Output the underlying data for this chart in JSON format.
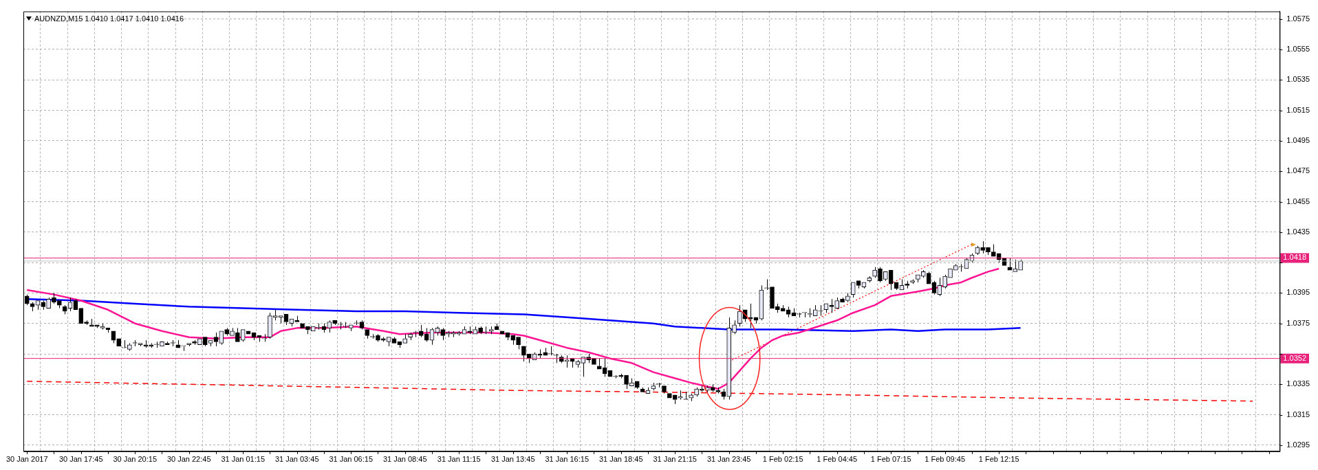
{
  "chart_data": {
    "type": "candlestick",
    "title": "AUDNZD,M15 1.0410 1.0417 1.0410 1.0416",
    "grid": true,
    "x": [
      "2017-01-30T15:15",
      "2017-01-30T15:30",
      "2017-01-30T15:45",
      "2017-01-30T16:00",
      "2017-01-30T16:15",
      "2017-01-30T16:30",
      "2017-01-30T16:45",
      "2017-01-30T17:00",
      "2017-01-30T17:15",
      "2017-01-30T17:30",
      "2017-01-30T17:45",
      "2017-01-30T18:00",
      "2017-01-30T18:15",
      "2017-01-30T18:30",
      "2017-01-30T18:45",
      "2017-01-30T19:00",
      "2017-01-30T19:15",
      "2017-01-30T19:30",
      "2017-01-30T19:45",
      "2017-01-30T20:00",
      "2017-01-30T20:15",
      "2017-01-30T20:30",
      "2017-01-30T20:45",
      "2017-01-30T21:00",
      "2017-01-30T21:15",
      "2017-01-30T21:30",
      "2017-01-30T21:45",
      "2017-01-30T22:00",
      "2017-01-30T22:15",
      "2017-01-30T22:30",
      "2017-01-30T22:45",
      "2017-01-30T23:00",
      "2017-01-30T23:15",
      "2017-01-30T23:30",
      "2017-01-30T23:45",
      "2017-01-31T00:00",
      "2017-01-31T00:15",
      "2017-01-31T00:30",
      "2017-01-31T00:45",
      "2017-01-31T01:00",
      "2017-01-31T01:15",
      "2017-01-31T01:30",
      "2017-01-31T01:45",
      "2017-01-31T02:00",
      "2017-01-31T02:15",
      "2017-01-31T02:30",
      "2017-01-31T02:45",
      "2017-01-31T03:00",
      "2017-01-31T03:15",
      "2017-01-31T03:30",
      "2017-01-31T03:45",
      "2017-01-31T04:00",
      "2017-01-31T04:15",
      "2017-01-31T04:30",
      "2017-01-31T04:45",
      "2017-01-31T05:00",
      "2017-01-31T05:15",
      "2017-01-31T05:30",
      "2017-01-31T05:45",
      "2017-01-31T06:00",
      "2017-01-31T06:15",
      "2017-01-31T06:30",
      "2017-01-31T06:45",
      "2017-01-31T07:00",
      "2017-01-31T07:15",
      "2017-01-31T07:30",
      "2017-01-31T07:45",
      "2017-01-31T08:00",
      "2017-01-31T08:15",
      "2017-01-31T08:30",
      "2017-01-31T08:45",
      "2017-01-31T09:00",
      "2017-01-31T09:15",
      "2017-01-31T09:30",
      "2017-01-31T09:45",
      "2017-01-31T10:00",
      "2017-01-31T10:15",
      "2017-01-31T10:30",
      "2017-01-31T10:45",
      "2017-01-31T11:00",
      "2017-01-31T11:15",
      "2017-01-31T11:30",
      "2017-01-31T11:45",
      "2017-01-31T12:00",
      "2017-01-31T12:15",
      "2017-01-31T12:30",
      "2017-01-31T12:45",
      "2017-01-31T13:00",
      "2017-01-31T13:15",
      "2017-01-31T13:30",
      "2017-01-31T13:45",
      "2017-01-31T14:00",
      "2017-01-31T14:15",
      "2017-01-31T14:30",
      "2017-01-31T14:45",
      "2017-01-31T15:00",
      "2017-01-31T15:15",
      "2017-01-31T15:30",
      "2017-01-31T15:45",
      "2017-01-31T16:00",
      "2017-01-31T16:15",
      "2017-01-31T16:30",
      "2017-01-31T16:45",
      "2017-01-31T17:00",
      "2017-01-31T17:15",
      "2017-01-31T17:30",
      "2017-01-31T17:45",
      "2017-01-31T18:00",
      "2017-01-31T18:15",
      "2017-01-31T18:30",
      "2017-01-31T18:45",
      "2017-01-31T19:00",
      "2017-01-31T19:15",
      "2017-01-31T19:30",
      "2017-01-31T19:45",
      "2017-01-31T20:00",
      "2017-01-31T20:15",
      "2017-01-31T20:30",
      "2017-01-31T20:45",
      "2017-01-31T21:00",
      "2017-01-31T21:15",
      "2017-01-31T21:30",
      "2017-01-31T21:45",
      "2017-01-31T22:00",
      "2017-01-31T22:15",
      "2017-01-31T22:30",
      "2017-01-31T22:45",
      "2017-01-31T23:00",
      "2017-01-31T23:15",
      "2017-01-31T23:30",
      "2017-01-31T23:45",
      "2017-02-01T00:00",
      "2017-02-01T00:15",
      "2017-02-01T00:30",
      "2017-02-01T00:45",
      "2017-02-01T01:00",
      "2017-02-01T01:15",
      "2017-02-01T01:30",
      "2017-02-01T01:45",
      "2017-02-01T02:00",
      "2017-02-01T02:15",
      "2017-02-01T02:30",
      "2017-02-01T02:45",
      "2017-02-01T03:00",
      "2017-02-01T03:15",
      "2017-02-01T03:30",
      "2017-02-01T03:45",
      "2017-02-01T04:00",
      "2017-02-01T04:15",
      "2017-02-01T04:30",
      "2017-02-01T04:45",
      "2017-02-01T05:00",
      "2017-02-01T05:15",
      "2017-02-01T05:30",
      "2017-02-01T05:45",
      "2017-02-01T06:00",
      "2017-02-01T06:15",
      "2017-02-01T06:30",
      "2017-02-01T06:45",
      "2017-02-01T07:00",
      "2017-02-01T07:15",
      "2017-02-01T07:30",
      "2017-02-01T07:45",
      "2017-02-01T08:00",
      "2017-02-01T08:15",
      "2017-02-01T08:30",
      "2017-02-01T08:45",
      "2017-02-01T09:00",
      "2017-02-01T09:15",
      "2017-02-01T09:30",
      "2017-02-01T09:45",
      "2017-02-01T10:00",
      "2017-02-01T10:15",
      "2017-02-01T10:30",
      "2017-02-01T10:45",
      "2017-02-01T11:00",
      "2017-02-01T11:15",
      "2017-02-01T11:30",
      "2017-02-01T11:45",
      "2017-02-01T12:00",
      "2017-02-01T12:15",
      "2017-02-01T12:30",
      "2017-02-01T12:45",
      "2017-02-01T13:00",
      "2017-02-01T13:15"
    ],
    "ohlc": [
      [
        1.0393,
        1.0394,
        1.0387,
        1.0388
      ],
      [
        1.0388,
        1.0389,
        1.0383,
        1.0386
      ],
      [
        1.0387,
        1.039,
        1.0384,
        1.039
      ],
      [
        1.0389,
        1.039,
        1.0384,
        1.0386
      ],
      [
        1.0385,
        1.0392,
        1.0385,
        1.0391
      ],
      [
        1.0392,
        1.0395,
        1.0388,
        1.0389
      ],
      [
        1.039,
        1.039,
        1.0385,
        1.0387
      ],
      [
        1.0386,
        1.0387,
        1.0381,
        1.0383
      ],
      [
        1.0385,
        1.0392,
        1.0383,
        1.0389
      ],
      [
        1.039,
        1.0391,
        1.0384,
        1.0384
      ],
      [
        1.0385,
        1.0385,
        1.0375,
        1.0375
      ],
      [
        1.0376,
        1.0377,
        1.0374,
        1.0375
      ],
      [
        1.0374,
        1.0378,
        1.0373,
        1.0373
      ],
      [
        1.0374,
        1.0374,
        1.0372,
        1.0373
      ],
      [
        1.0372,
        1.0375,
        1.0371,
        1.0373
      ],
      [
        1.0372,
        1.0372,
        1.0369,
        1.0371
      ],
      [
        1.037,
        1.037,
        1.0362,
        1.0364
      ],
      [
        1.0365,
        1.0365,
        1.036,
        1.036
      ],
      [
        1.0359,
        1.0364,
        1.0359,
        1.0359
      ],
      [
        1.0358,
        1.0362,
        1.0357,
        1.0361
      ],
      [
        1.0362,
        1.0364,
        1.036,
        1.0362
      ],
      [
        1.0361,
        1.0362,
        1.036,
        1.0362
      ],
      [
        1.0361,
        1.0364,
        1.0359,
        1.036
      ],
      [
        1.0361,
        1.0362,
        1.0359,
        1.036
      ],
      [
        1.0361,
        1.0363,
        1.0359,
        1.0361
      ],
      [
        1.036,
        1.0363,
        1.036,
        1.0363
      ],
      [
        1.0362,
        1.0363,
        1.0361,
        1.0361
      ],
      [
        1.0362,
        1.0364,
        1.036,
        1.0362
      ],
      [
        1.0361,
        1.0364,
        1.0359,
        1.0359
      ],
      [
        1.036,
        1.036,
        1.0357,
        1.036
      ],
      [
        1.0361,
        1.0362,
        1.036,
        1.0362
      ],
      [
        1.0363,
        1.0364,
        1.0361,
        1.0362
      ],
      [
        1.0361,
        1.0365,
        1.0361,
        1.0365
      ],
      [
        1.0366,
        1.0366,
        1.036,
        1.0361
      ],
      [
        1.0362,
        1.0364,
        1.036,
        1.0364
      ],
      [
        1.0366,
        1.0369,
        1.036,
        1.0363
      ],
      [
        1.0362,
        1.037,
        1.0361,
        1.037
      ],
      [
        1.0371,
        1.0372,
        1.0367,
        1.0368
      ],
      [
        1.0367,
        1.0372,
        1.0367,
        1.037
      ],
      [
        1.0369,
        1.0372,
        1.0363,
        1.0363
      ],
      [
        1.0364,
        1.0371,
        1.0363,
        1.0371
      ],
      [
        1.037,
        1.037,
        1.0368,
        1.0368
      ],
      [
        1.0369,
        1.0369,
        1.0364,
        1.0366
      ],
      [
        1.0367,
        1.0367,
        1.0363,
        1.0366
      ],
      [
        1.0365,
        1.0368,
        1.0363,
        1.0365
      ],
      [
        1.0366,
        1.0382,
        1.0365,
        1.038
      ],
      [
        1.0379,
        1.0384,
        1.0377,
        1.038
      ],
      [
        1.0379,
        1.038,
        1.0375,
        1.038
      ],
      [
        1.0381,
        1.0381,
        1.0374,
        1.0376
      ],
      [
        1.0375,
        1.0378,
        1.0373,
        1.0378
      ],
      [
        1.0377,
        1.038,
        1.0376,
        1.0376
      ],
      [
        1.0375,
        1.0375,
        1.0372,
        1.0372
      ],
      [
        1.0373,
        1.0373,
        1.0368,
        1.0371
      ],
      [
        1.037,
        1.0373,
        1.037,
        1.0373
      ],
      [
        1.0372,
        1.0375,
        1.0371,
        1.0372
      ],
      [
        1.0373,
        1.0375,
        1.0369,
        1.0371
      ],
      [
        1.0372,
        1.0377,
        1.0369,
        1.0376
      ],
      [
        1.0377,
        1.0377,
        1.0374,
        1.0375
      ],
      [
        1.0374,
        1.0376,
        1.0371,
        1.0374
      ],
      [
        1.0373,
        1.0376,
        1.0372,
        1.0373
      ],
      [
        1.0372,
        1.0374,
        1.037,
        1.0374
      ],
      [
        1.0375,
        1.0377,
        1.0374,
        1.0375
      ],
      [
        1.0376,
        1.0377,
        1.0371,
        1.0372
      ],
      [
        1.0371,
        1.0371,
        1.0365,
        1.0367
      ],
      [
        1.0366,
        1.0368,
        1.0365,
        1.0366
      ],
      [
        1.0367,
        1.0368,
        1.0363,
        1.0364
      ],
      [
        1.0365,
        1.0366,
        1.0363,
        1.0364
      ],
      [
        1.0363,
        1.0366,
        1.036,
        1.0366
      ],
      [
        1.0365,
        1.0366,
        1.0362,
        1.0362
      ],
      [
        1.0363,
        1.0363,
        1.0359,
        1.0361
      ],
      [
        1.0362,
        1.0368,
        1.0362,
        1.0365
      ],
      [
        1.0366,
        1.0369,
        1.0364,
        1.0368
      ],
      [
        1.0369,
        1.037,
        1.0366,
        1.0369
      ],
      [
        1.037,
        1.0374,
        1.0366,
        1.0367
      ],
      [
        1.0368,
        1.0372,
        1.0363,
        1.0364
      ],
      [
        1.0364,
        1.0372,
        1.0361,
        1.0371
      ],
      [
        1.0369,
        1.0373,
        1.0367,
        1.0372
      ],
      [
        1.0371,
        1.0372,
        1.0364,
        1.0367
      ],
      [
        1.0368,
        1.037,
        1.0366,
        1.0369
      ],
      [
        1.0368,
        1.037,
        1.0366,
        1.0369
      ],
      [
        1.0368,
        1.037,
        1.0367,
        1.0369
      ],
      [
        1.0368,
        1.0373,
        1.0368,
        1.0371
      ],
      [
        1.037,
        1.0373,
        1.0368,
        1.0369
      ],
      [
        1.0368,
        1.0373,
        1.0368,
        1.0371
      ],
      [
        1.0372,
        1.0373,
        1.0368,
        1.0369
      ],
      [
        1.0369,
        1.0373,
        1.0368,
        1.0369
      ],
      [
        1.037,
        1.0373,
        1.0368,
        1.0371
      ],
      [
        1.0373,
        1.0375,
        1.0371,
        1.0371
      ],
      [
        1.037,
        1.037,
        1.0368,
        1.0368
      ],
      [
        1.0369,
        1.0369,
        1.0364,
        1.0366
      ],
      [
        1.0367,
        1.0367,
        1.0361,
        1.0364
      ],
      [
        1.0366,
        1.0366,
        1.0358,
        1.0361
      ],
      [
        1.036,
        1.036,
        1.035,
        1.0354
      ],
      [
        1.0355,
        1.0355,
        1.0349,
        1.0352
      ],
      [
        1.0351,
        1.0356,
        1.0351,
        1.0355
      ],
      [
        1.0355,
        1.0358,
        1.0352,
        1.0354
      ],
      [
        1.0356,
        1.0359,
        1.0354,
        1.0354
      ],
      [
        1.0355,
        1.036,
        1.0354,
        1.0355
      ],
      [
        1.0354,
        1.0355,
        1.0349,
        1.0354
      ],
      [
        1.0353,
        1.0354,
        1.0349,
        1.035
      ],
      [
        1.035,
        1.0354,
        1.0346,
        1.0351
      ],
      [
        1.0352,
        1.0352,
        1.0346,
        1.035
      ],
      [
        1.0348,
        1.0351,
        1.0346,
        1.035
      ],
      [
        1.0349,
        1.0353,
        1.034,
        1.0353
      ],
      [
        1.0353,
        1.0355,
        1.0349,
        1.0351
      ],
      [
        1.0352,
        1.0352,
        1.0348,
        1.0348
      ],
      [
        1.0347,
        1.0352,
        1.0345,
        1.0345
      ],
      [
        1.0346,
        1.0352,
        1.034,
        1.0342
      ],
      [
        1.0344,
        1.0344,
        1.034,
        1.034
      ],
      [
        1.034,
        1.0341,
        1.0339,
        1.034
      ],
      [
        1.0341,
        1.0342,
        1.0339,
        1.034
      ],
      [
        1.0341,
        1.0341,
        1.0332,
        1.0335
      ],
      [
        1.0334,
        1.0339,
        1.0334,
        1.0336
      ],
      [
        1.0337,
        1.0337,
        1.0332,
        1.0333
      ],
      [
        1.0332,
        1.0333,
        1.033,
        1.033
      ],
      [
        1.0329,
        1.0333,
        1.0329,
        1.0331
      ],
      [
        1.0332,
        1.0336,
        1.0331,
        1.0334
      ],
      [
        1.0335,
        1.0336,
        1.0333,
        1.0335
      ],
      [
        1.0334,
        1.0334,
        1.0329,
        1.033
      ],
      [
        1.0329,
        1.0329,
        1.0326,
        1.0326
      ],
      [
        1.0328,
        1.0328,
        1.0322,
        1.0325
      ],
      [
        1.0326,
        1.0331,
        1.0325,
        1.0327
      ],
      [
        1.0325,
        1.033,
        1.0325,
        1.0325
      ],
      [
        1.0326,
        1.0329,
        1.0324,
        1.0328
      ],
      [
        1.0328,
        1.0333,
        1.0327,
        1.0332
      ],
      [
        1.0332,
        1.0334,
        1.033,
        1.0331
      ],
      [
        1.0331,
        1.0334,
        1.0329,
        1.0333
      ],
      [
        1.0333,
        1.0335,
        1.033,
        1.0331
      ],
      [
        1.0331,
        1.0333,
        1.0329,
        1.033
      ],
      [
        1.033,
        1.0332,
        1.0325,
        1.0327
      ],
      [
        1.0327,
        1.0379,
        1.0325,
        1.0372
      ],
      [
        1.0369,
        1.0377,
        1.0368,
        1.0374
      ],
      [
        1.0375,
        1.0387,
        1.0373,
        1.0383
      ],
      [
        1.0384,
        1.0384,
        1.0376,
        1.0378
      ],
      [
        1.0379,
        1.0388,
        1.0372,
        1.0378
      ],
      [
        1.0379,
        1.0379,
        1.0375,
        1.0377
      ],
      [
        1.0378,
        1.04,
        1.0377,
        1.0397
      ],
      [
        1.0398,
        1.0404,
        1.0397,
        1.0398
      ],
      [
        1.0399,
        1.0399,
        1.0385,
        1.0385
      ],
      [
        1.0386,
        1.0388,
        1.0382,
        1.0384
      ],
      [
        1.0385,
        1.0387,
        1.0383,
        1.0383
      ],
      [
        1.0384,
        1.0386,
        1.0379,
        1.0381
      ],
      [
        1.0382,
        1.0385,
        1.038,
        1.038
      ],
      [
        1.0381,
        1.0382,
        1.0379,
        1.0381
      ],
      [
        1.0382,
        1.0382,
        1.0379,
        1.0382
      ],
      [
        1.0381,
        1.0385,
        1.0379,
        1.0381
      ],
      [
        1.038,
        1.0387,
        1.038,
        1.0384
      ],
      [
        1.0383,
        1.0387,
        1.038,
        1.0383
      ],
      [
        1.0384,
        1.0388,
        1.0382,
        1.0388
      ],
      [
        1.0387,
        1.0391,
        1.0382,
        1.0386
      ],
      [
        1.0385,
        1.0392,
        1.0385,
        1.039
      ],
      [
        1.0391,
        1.0392,
        1.0389,
        1.0389
      ],
      [
        1.039,
        1.0395,
        1.0389,
        1.0393
      ],
      [
        1.0394,
        1.0402,
        1.0392,
        1.0402
      ],
      [
        1.0403,
        1.0403,
        1.0398,
        1.04
      ],
      [
        1.0399,
        1.0402,
        1.0398,
        1.0402
      ],
      [
        1.0403,
        1.0406,
        1.0402,
        1.0405
      ],
      [
        1.0406,
        1.0412,
        1.0405,
        1.041
      ],
      [
        1.0411,
        1.0412,
        1.0402,
        1.0403
      ],
      [
        1.0404,
        1.0409,
        1.0403,
        1.0409
      ],
      [
        1.041,
        1.041,
        1.0397,
        1.0401
      ],
      [
        1.0402,
        1.0402,
        1.0397,
        1.0398
      ],
      [
        1.0397,
        1.0404,
        1.0397,
        1.04
      ],
      [
        1.0401,
        1.0403,
        1.0398,
        1.04
      ],
      [
        1.0402,
        1.0404,
        1.0401,
        1.0403
      ],
      [
        1.0404,
        1.0407,
        1.0402,
        1.0407
      ],
      [
        1.0406,
        1.041,
        1.0405,
        1.0409
      ],
      [
        1.0408,
        1.0409,
        1.0401,
        1.0401
      ],
      [
        1.0402,
        1.0403,
        1.0394,
        1.0395
      ],
      [
        1.0394,
        1.0405,
        1.0393,
        1.04
      ],
      [
        1.0399,
        1.0407,
        1.0398,
        1.0406
      ],
      [
        1.0405,
        1.0411,
        1.0405,
        1.0411
      ],
      [
        1.041,
        1.0414,
        1.041,
        1.0413
      ],
      [
        1.0412,
        1.0414,
        1.0409,
        1.0412
      ],
      [
        1.0411,
        1.0418,
        1.0411,
        1.0417
      ],
      [
        1.0416,
        1.0421,
        1.0415,
        1.042
      ],
      [
        1.0421,
        1.0426,
        1.042,
        1.0425
      ],
      [
        1.0425,
        1.0429,
        1.0421,
        1.0423
      ],
      [
        1.0425,
        1.0425,
        1.042,
        1.0422
      ],
      [
        1.0422,
        1.0427,
        1.0419,
        1.0419
      ],
      [
        1.0421,
        1.0421,
        1.0415,
        1.0417
      ],
      [
        1.0418,
        1.0418,
        1.0413,
        1.0413
      ],
      [
        1.0412,
        1.0418,
        1.041,
        1.041
      ],
      [
        1.0409,
        1.0417,
        1.0409,
        1.0411
      ],
      [
        1.041,
        1.0417,
        1.041,
        1.0416
      ]
    ],
    "series": [
      {
        "type": "line",
        "color": "#ff1493",
        "x": [
          "2017-01-30T15:15",
          "2017-01-30T16:30",
          "2017-01-30T17:45",
          "2017-01-30T19:00",
          "2017-01-30T20:15",
          "2017-01-30T21:30",
          "2017-01-30T22:45",
          "2017-01-31T00:00",
          "2017-01-31T01:15",
          "2017-01-31T02:30",
          "2017-01-31T03:00",
          "2017-01-31T03:45",
          "2017-01-31T05:00",
          "2017-01-31T06:30",
          "2017-01-31T07:45",
          "2017-01-31T08:30",
          "2017-01-31T10:00",
          "2017-01-31T12:30",
          "2017-01-31T13:45",
          "2017-01-31T14:15",
          "2017-01-31T15:15",
          "2017-01-31T16:15",
          "2017-01-31T17:15",
          "2017-01-31T18:15",
          "2017-01-31T19:15",
          "2017-01-31T20:15",
          "2017-01-31T21:15",
          "2017-01-31T22:00",
          "2017-01-31T23:15",
          "2017-01-31T23:45",
          "2017-02-01T00:15",
          "2017-02-01T00:45",
          "2017-02-01T01:15",
          "2017-02-01T01:45",
          "2017-02-01T02:15",
          "2017-02-01T03:00",
          "2017-02-01T04:45",
          "2017-02-01T05:30",
          "2017-02-01T06:30",
          "2017-02-01T07:15",
          "2017-02-01T08:30",
          "2017-02-01T09:15",
          "2017-02-01T09:45",
          "2017-02-01T10:30",
          "2017-02-01T11:00",
          "2017-02-01T11:45",
          "2017-02-01T12:15"
        ],
        "values": [
          1.0397,
          1.0394,
          1.039,
          1.0384,
          1.0375,
          1.037,
          1.0366,
          1.0365,
          1.0366,
          1.0366,
          1.037,
          1.0372,
          1.0372,
          1.0373,
          1.037,
          1.0368,
          1.0369,
          1.0369,
          1.0368,
          1.0367,
          1.0363,
          1.0359,
          1.0356,
          1.0352,
          1.0349,
          1.0343,
          1.0339,
          1.0336,
          1.0332,
          1.0336,
          1.0344,
          1.0352,
          1.0359,
          1.0364,
          1.0367,
          1.0369,
          1.0377,
          1.0382,
          1.0387,
          1.0393,
          1.0396,
          1.0398,
          1.04,
          1.0402,
          1.0405,
          1.0409,
          1.0411
        ]
      },
      {
        "type": "line",
        "color": "#0000ff",
        "x": [
          "2017-01-30T15:15",
          "2017-01-30T17:45",
          "2017-01-30T20:15",
          "2017-01-30T22:45",
          "2017-01-31T01:15",
          "2017-01-31T03:45",
          "2017-01-31T06:30",
          "2017-01-31T08:45",
          "2017-01-31T11:15",
          "2017-01-31T14:15",
          "2017-01-31T16:15",
          "2017-01-31T17:15",
          "2017-01-31T18:15",
          "2017-01-31T19:15",
          "2017-01-31T20:15",
          "2017-01-31T21:15",
          "2017-01-31T23:45",
          "2017-02-01T02:15",
          "2017-02-01T05:30",
          "2017-02-01T07:15",
          "2017-02-01T08:30",
          "2017-02-01T09:45",
          "2017-02-01T11:45",
          "2017-02-01T13:15"
        ],
        "values": [
          1.0391,
          1.039,
          1.0388,
          1.0386,
          1.0385,
          1.0384,
          1.0383,
          1.0383,
          1.0382,
          1.0381,
          1.0379,
          1.0378,
          1.0377,
          1.0376,
          1.0375,
          1.0373,
          1.0371,
          1.0371,
          1.037,
          1.0371,
          1.037,
          1.0371,
          1.0371,
          1.0372
        ]
      },
      {
        "type": "line",
        "color": "#ff0000",
        "line_style": "dashed",
        "x": [
          "2017-01-30T15:15",
          "2017-01-31T06:30",
          "2017-01-31T13:45",
          "2017-01-31T20:00",
          "2017-02-01T05:30",
          "2017-02-01T13:15",
          "2017-02-02T00:00"
        ],
        "values": [
          1.0337,
          1.0333,
          1.0331,
          1.033,
          1.0328,
          1.0326,
          1.0324
        ]
      },
      {
        "type": "line",
        "color": "#ff0000",
        "line_style": "dotted",
        "x": [
          "2017-01-31T23:45",
          "2017-02-01T11:00"
        ],
        "values": [
          1.035,
          1.0427
        ]
      }
    ],
    "ref_lines": [
      {
        "axis": "y",
        "value": 1.0418,
        "label": "1.0418",
        "color": "#e8217a"
      },
      {
        "axis": "y",
        "value": 1.0352,
        "label": "1.0352",
        "color": "#e8217a"
      },
      {
        "axis": "y",
        "value": 1.0416,
        "color": "#c0c0c0"
      }
    ],
    "xlim": [
      "2017-01-30T15:05",
      "2017-02-02T01:15"
    ],
    "xticks": [
      {
        "value": "2017-01-30T15:15",
        "label": "30 Jan 2017"
      },
      {
        "value": "2017-01-30T16:30",
        "label": null
      },
      {
        "value": "2017-01-30T17:45",
        "label": "30 Jan 17:45"
      },
      {
        "value": "2017-01-30T19:00",
        "label": null
      },
      {
        "value": "2017-01-30T20:15",
        "label": "30 Jan 20:15"
      },
      {
        "value": "2017-01-30T21:30",
        "label": null
      },
      {
        "value": "2017-01-30T22:45",
        "label": "30 Jan 22:45"
      },
      {
        "value": "2017-01-31T00:00",
        "label": null
      },
      {
        "value": "2017-01-31T01:15",
        "label": "31 Jan 01:15"
      },
      {
        "value": "2017-01-31T02:30",
        "label": null
      },
      {
        "value": "2017-01-31T03:45",
        "label": "31 Jan 03:45"
      },
      {
        "value": "2017-01-31T05:00",
        "label": null
      },
      {
        "value": "2017-01-31T06:15",
        "label": "31 Jan 06:15"
      },
      {
        "value": "2017-01-31T07:30",
        "label": null
      },
      {
        "value": "2017-01-31T08:45",
        "label": "31 Jan 08:45"
      },
      {
        "value": "2017-01-31T10:00",
        "label": null
      },
      {
        "value": "2017-01-31T11:15",
        "label": "31 Jan 11:15"
      },
      {
        "value": "2017-01-31T12:30",
        "label": null
      },
      {
        "value": "2017-01-31T13:45",
        "label": "31 Jan 13:45"
      },
      {
        "value": "2017-01-31T15:00",
        "label": null
      },
      {
        "value": "2017-01-31T16:15",
        "label": "31 Jan 16:15"
      },
      {
        "value": "2017-01-31T17:30",
        "label": null
      },
      {
        "value": "2017-01-31T18:45",
        "label": "31 Jan 18:45"
      },
      {
        "value": "2017-01-31T20:00",
        "label": null
      },
      {
        "value": "2017-01-31T21:15",
        "label": "31 Jan 21:15"
      },
      {
        "value": "2017-01-31T22:30",
        "label": null
      },
      {
        "value": "2017-01-31T23:45",
        "label": "31 Jan 23:45"
      },
      {
        "value": "2017-02-01T01:00",
        "label": null
      },
      {
        "value": "2017-02-01T02:15",
        "label": "1 Feb 02:15"
      },
      {
        "value": "2017-02-01T03:30",
        "label": null
      },
      {
        "value": "2017-02-01T04:45",
        "label": "1 Feb 04:45"
      },
      {
        "value": "2017-02-01T06:00",
        "label": null
      },
      {
        "value": "2017-02-01T07:15",
        "label": "1 Feb 07:15"
      },
      {
        "value": "2017-02-01T08:30",
        "label": null
      },
      {
        "value": "2017-02-01T09:45",
        "label": "1 Feb 09:45"
      },
      {
        "value": "2017-02-01T11:00",
        "label": null
      },
      {
        "value": "2017-02-01T12:15",
        "label": "1 Feb 12:15"
      },
      {
        "value": "2017-02-01T13:30",
        "label": null
      },
      {
        "value": "2017-02-01T14:45",
        "label": null
      },
      {
        "value": "2017-02-01T16:00",
        "label": null
      },
      {
        "value": "2017-02-01T17:15",
        "label": null
      },
      {
        "value": "2017-02-01T18:30",
        "label": null
      },
      {
        "value": "2017-02-01T19:45",
        "label": null
      },
      {
        "value": "2017-02-01T21:00",
        "label": null
      },
      {
        "value": "2017-02-01T22:15",
        "label": null
      },
      {
        "value": "2017-02-01T23:30",
        "label": null
      },
      {
        "value": "2017-02-02T00:45",
        "label": null
      }
    ],
    "ylim": [
      1.0291,
      1.058
    ],
    "yticks": [
      1.0295,
      1.0315,
      1.0335,
      {
        "value": 1.0355,
        "label": null
      },
      1.0375,
      1.0395,
      {
        "value": 1.0415,
        "label": null
      },
      1.0435,
      1.0455,
      1.0475,
      1.0495,
      1.0515,
      1.0535,
      1.0555,
      1.0575
    ]
  }
}
